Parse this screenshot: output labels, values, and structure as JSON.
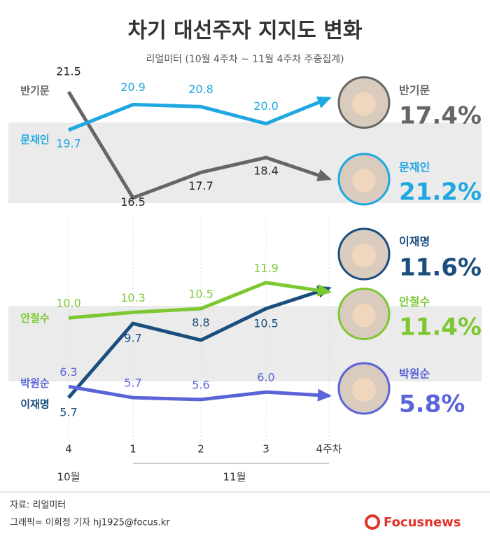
{
  "header": {
    "title": "차기 대선주자 지지도 변화",
    "subtitle": "리얼미터 (10월 4주차 ~ 11월 4주차 주중집계)"
  },
  "x_axis": {
    "categories": [
      "4",
      "1",
      "2",
      "3",
      "4주차"
    ],
    "groups": [
      "10월",
      "11월"
    ]
  },
  "chart_data": [
    {
      "type": "line",
      "ylim": [
        15.6,
        22.2
      ],
      "series": [
        {
          "name": "반기문",
          "color": "#666666",
          "values": [
            21.5,
            16.5,
            17.7,
            18.4,
            17.4
          ],
          "value_labels": [
            "21.5",
            "16.5",
            "17.7",
            "18.4",
            "17.4%"
          ]
        },
        {
          "name": "문재인",
          "color": "#1ea7e1",
          "values": [
            19.7,
            20.9,
            20.8,
            20.0,
            21.2
          ],
          "value_labels": [
            "19.7",
            "20.9",
            "20.8",
            "20.0",
            "21.2%"
          ]
        }
      ]
    },
    {
      "type": "line",
      "ylim": [
        4.5,
        12.8
      ],
      "series": [
        {
          "name": "이재명",
          "color": "#1a4e7e",
          "values": [
            5.7,
            9.7,
            8.8,
            10.5,
            11.6
          ],
          "value_labels": [
            "5.7",
            "9.7",
            "8.8",
            "10.5",
            "11.6%"
          ]
        },
        {
          "name": "안철수",
          "color": "#7dc832",
          "values": [
            10.0,
            10.3,
            10.5,
            11.9,
            11.4
          ],
          "value_labels": [
            "10.0",
            "10.3",
            "10.5",
            "11.9",
            "11.4%"
          ]
        },
        {
          "name": "박원순",
          "color": "#5a64d8",
          "values": [
            6.3,
            5.7,
            5.6,
            6.0,
            5.8
          ],
          "value_labels": [
            "6.3",
            "5.7",
            "5.6",
            "6.0",
            "5.8%"
          ]
        }
      ]
    }
  ],
  "footer": {
    "source": "자료: 리얼미터",
    "credit": "그래픽= 이희정 기자 hj1925@focus.kr",
    "logo": "Focusnews"
  }
}
